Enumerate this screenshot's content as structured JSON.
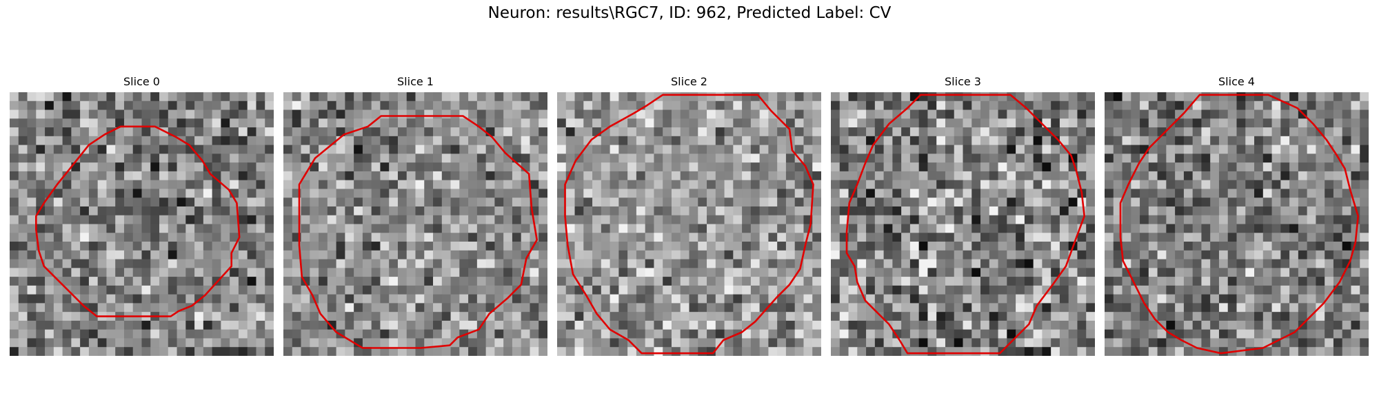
{
  "figure": {
    "title": "Neuron: results\\RGC7, ID: 962, Predicted Label: CV"
  },
  "colors": {
    "contour": "#e00000"
  },
  "panels": [
    {
      "label": "Slice 0",
      "seed": 11,
      "mean": 0.52,
      "contrast": 0.22,
      "contour": [
        [
          0.42,
          0.13
        ],
        [
          0.55,
          0.13
        ],
        [
          0.63,
          0.17
        ],
        [
          0.68,
          0.2
        ],
        [
          0.73,
          0.26
        ],
        [
          0.76,
          0.31
        ],
        [
          0.83,
          0.37
        ],
        [
          0.86,
          0.42
        ],
        [
          0.87,
          0.55
        ],
        [
          0.84,
          0.61
        ],
        [
          0.84,
          0.66
        ],
        [
          0.74,
          0.77
        ],
        [
          0.69,
          0.81
        ],
        [
          0.64,
          0.83
        ],
        [
          0.61,
          0.85
        ],
        [
          0.33,
          0.85
        ],
        [
          0.28,
          0.81
        ],
        [
          0.23,
          0.76
        ],
        [
          0.13,
          0.66
        ],
        [
          0.11,
          0.6
        ],
        [
          0.1,
          0.52
        ],
        [
          0.1,
          0.47
        ],
        [
          0.13,
          0.42
        ],
        [
          0.18,
          0.35
        ],
        [
          0.22,
          0.3
        ],
        [
          0.3,
          0.2
        ],
        [
          0.36,
          0.16
        ]
      ]
    },
    {
      "label": "Slice 1",
      "seed": 23,
      "mean": 0.55,
      "contrast": 0.2,
      "contour": [
        [
          0.37,
          0.09
        ],
        [
          0.68,
          0.09
        ],
        [
          0.74,
          0.13
        ],
        [
          0.79,
          0.17
        ],
        [
          0.84,
          0.23
        ],
        [
          0.93,
          0.31
        ],
        [
          0.94,
          0.44
        ],
        [
          0.96,
          0.56
        ],
        [
          0.92,
          0.63
        ],
        [
          0.9,
          0.73
        ],
        [
          0.85,
          0.78
        ],
        [
          0.78,
          0.84
        ],
        [
          0.74,
          0.9
        ],
        [
          0.66,
          0.93
        ],
        [
          0.63,
          0.96
        ],
        [
          0.52,
          0.97
        ],
        [
          0.3,
          0.97
        ],
        [
          0.25,
          0.94
        ],
        [
          0.2,
          0.91
        ],
        [
          0.14,
          0.84
        ],
        [
          0.11,
          0.77
        ],
        [
          0.07,
          0.7
        ],
        [
          0.06,
          0.58
        ],
        [
          0.06,
          0.35
        ],
        [
          0.12,
          0.25
        ],
        [
          0.23,
          0.16
        ],
        [
          0.32,
          0.13
        ]
      ]
    },
    {
      "label": "Slice 2",
      "seed": 37,
      "mean": 0.6,
      "contrast": 0.2,
      "contour": [
        [
          0.4,
          0.01
        ],
        [
          0.53,
          0.01
        ],
        [
          0.76,
          0.01
        ],
        [
          0.81,
          0.07
        ],
        [
          0.88,
          0.14
        ],
        [
          0.89,
          0.22
        ],
        [
          0.94,
          0.28
        ],
        [
          0.97,
          0.35
        ],
        [
          0.96,
          0.5
        ],
        [
          0.94,
          0.58
        ],
        [
          0.92,
          0.67
        ],
        [
          0.88,
          0.73
        ],
        [
          0.83,
          0.78
        ],
        [
          0.75,
          0.87
        ],
        [
          0.7,
          0.91
        ],
        [
          0.63,
          0.94
        ],
        [
          0.59,
          0.99
        ],
        [
          0.32,
          0.99
        ],
        [
          0.27,
          0.94
        ],
        [
          0.2,
          0.9
        ],
        [
          0.15,
          0.84
        ],
        [
          0.11,
          0.77
        ],
        [
          0.06,
          0.69
        ],
        [
          0.04,
          0.58
        ],
        [
          0.03,
          0.47
        ],
        [
          0.03,
          0.35
        ],
        [
          0.07,
          0.26
        ],
        [
          0.13,
          0.18
        ],
        [
          0.2,
          0.13
        ],
        [
          0.29,
          0.08
        ],
        [
          0.34,
          0.05
        ]
      ]
    },
    {
      "label": "Slice 3",
      "seed": 53,
      "mean": 0.52,
      "contrast": 0.26,
      "contour": [
        [
          0.34,
          0.01
        ],
        [
          0.29,
          0.06
        ],
        [
          0.22,
          0.12
        ],
        [
          0.16,
          0.2
        ],
        [
          0.13,
          0.27
        ],
        [
          0.1,
          0.35
        ],
        [
          0.07,
          0.42
        ],
        [
          0.06,
          0.53
        ],
        [
          0.06,
          0.61
        ],
        [
          0.09,
          0.66
        ],
        [
          0.1,
          0.72
        ],
        [
          0.13,
          0.79
        ],
        [
          0.17,
          0.83
        ],
        [
          0.22,
          0.88
        ],
        [
          0.26,
          0.94
        ],
        [
          0.29,
          0.99
        ],
        [
          0.64,
          0.99
        ],
        [
          0.69,
          0.94
        ],
        [
          0.75,
          0.88
        ],
        [
          0.78,
          0.81
        ],
        [
          0.84,
          0.73
        ],
        [
          0.89,
          0.66
        ],
        [
          0.93,
          0.55
        ],
        [
          0.96,
          0.47
        ],
        [
          0.95,
          0.38
        ],
        [
          0.93,
          0.3
        ],
        [
          0.91,
          0.24
        ],
        [
          0.86,
          0.18
        ],
        [
          0.8,
          0.12
        ],
        [
          0.74,
          0.06
        ],
        [
          0.68,
          0.01
        ],
        [
          0.62,
          0.01
        ]
      ]
    },
    {
      "label": "Slice 4",
      "seed": 71,
      "mean": 0.5,
      "contrast": 0.22,
      "contour": [
        [
          0.36,
          0.01
        ],
        [
          0.62,
          0.01
        ],
        [
          0.73,
          0.06
        ],
        [
          0.79,
          0.12
        ],
        [
          0.84,
          0.18
        ],
        [
          0.88,
          0.24
        ],
        [
          0.91,
          0.29
        ],
        [
          0.93,
          0.37
        ],
        [
          0.96,
          0.47
        ],
        [
          0.95,
          0.57
        ],
        [
          0.93,
          0.64
        ],
        [
          0.89,
          0.72
        ],
        [
          0.83,
          0.8
        ],
        [
          0.77,
          0.86
        ],
        [
          0.72,
          0.91
        ],
        [
          0.66,
          0.94
        ],
        [
          0.6,
          0.97
        ],
        [
          0.44,
          0.99
        ],
        [
          0.35,
          0.97
        ],
        [
          0.29,
          0.94
        ],
        [
          0.24,
          0.91
        ],
        [
          0.19,
          0.86
        ],
        [
          0.15,
          0.8
        ],
        [
          0.11,
          0.72
        ],
        [
          0.07,
          0.64
        ],
        [
          0.06,
          0.55
        ],
        [
          0.06,
          0.42
        ],
        [
          0.09,
          0.35
        ],
        [
          0.13,
          0.27
        ],
        [
          0.17,
          0.21
        ],
        [
          0.23,
          0.15
        ],
        [
          0.3,
          0.08
        ]
      ]
    }
  ]
}
